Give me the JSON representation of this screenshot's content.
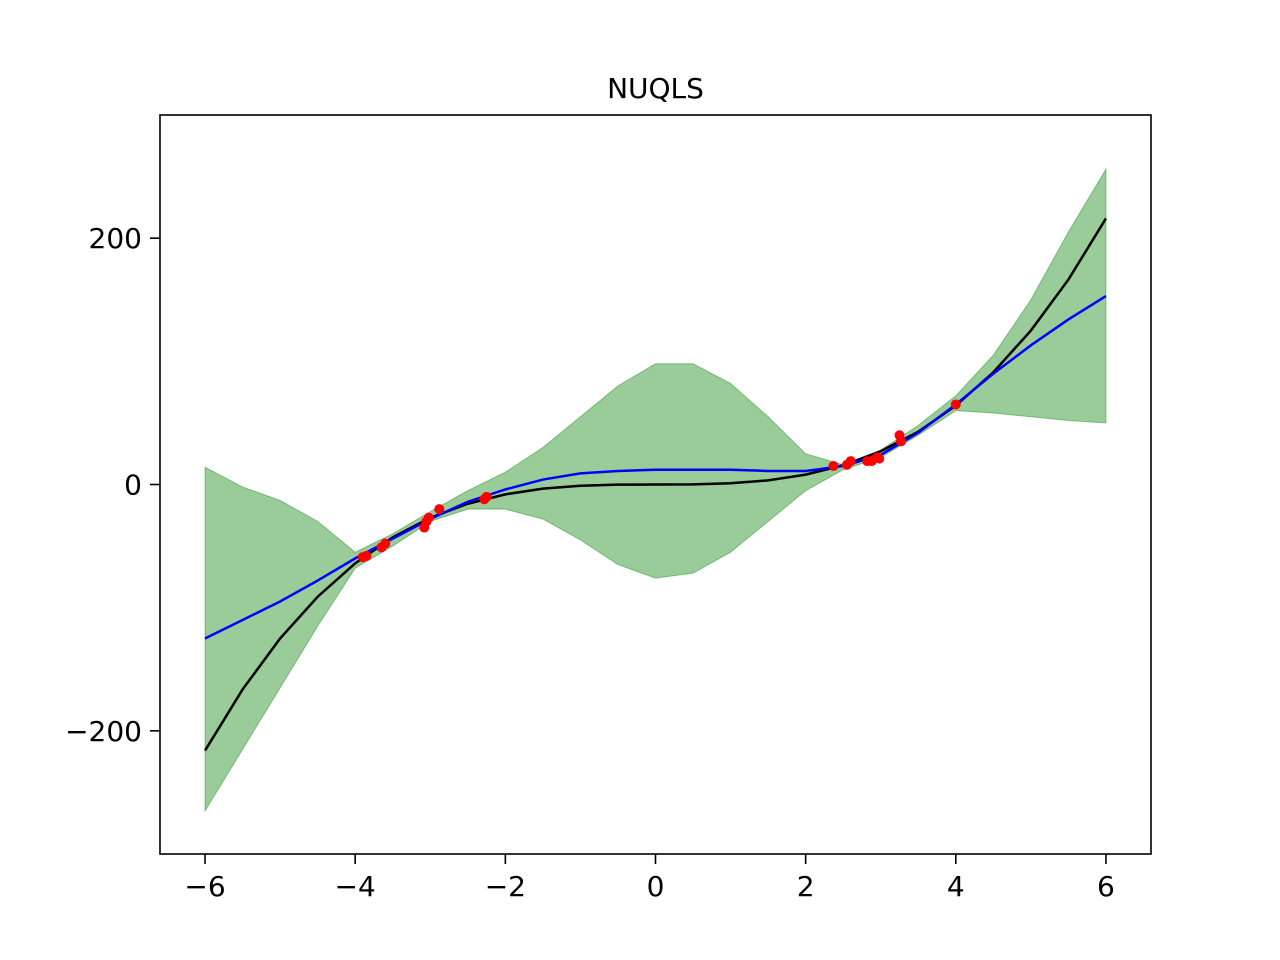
{
  "chart_data": {
    "type": "line",
    "title": "NUQLS",
    "x": [
      -6,
      -5.5,
      -5,
      -4.5,
      -4,
      -3.5,
      -3,
      -2.5,
      -2,
      -1.5,
      -1,
      -0.5,
      0,
      0.5,
      1,
      1.5,
      2,
      2.5,
      3,
      3.5,
      4,
      4.5,
      5,
      5.5,
      6
    ],
    "series": [
      {
        "color": "#000000",
        "values": [
          -216,
          -166.375,
          -125,
          -91.125,
          -64,
          -42.875,
          -27,
          -15.625,
          -8,
          -3.375,
          -1,
          -0.125,
          0,
          0.125,
          1,
          3.375,
          8,
          15.625,
          27,
          42.875,
          64,
          91.125,
          125,
          166.375,
          216
        ]
      },
      {
        "color": "#0000ff",
        "values": [
          -125,
          -110,
          -95,
          -78,
          -60,
          -44,
          -28,
          -14,
          -4,
          4,
          9,
          11,
          12,
          12,
          12,
          11,
          11,
          15,
          24,
          42,
          65,
          90,
          113,
          134,
          153
        ]
      }
    ],
    "band": {
      "color": "#008000",
      "alpha": 0.4,
      "upper": [
        14,
        -2,
        -13,
        -30,
        -55,
        -40,
        -22,
        -5,
        10,
        30,
        55,
        80,
        98,
        98,
        82,
        55,
        25,
        16,
        28,
        48,
        72,
        105,
        150,
        205,
        256
      ],
      "lower": [
        -265,
        -215,
        -165,
        -115,
        -68,
        -50,
        -30,
        -20,
        -20,
        -28,
        -45,
        -65,
        -76,
        -72,
        -55,
        -30,
        -5,
        12,
        22,
        40,
        60,
        58,
        55,
        52,
        50
      ]
    },
    "points": {
      "color": "#ff0000",
      "x": [
        -3.9,
        -3.85,
        -3.65,
        -3.6,
        -3.08,
        -3.05,
        -3.02,
        -2.88,
        -2.28,
        -2.25,
        2.37,
        2.55,
        2.6,
        2.82,
        2.88,
        2.95,
        2.98,
        3.25,
        3.27,
        4.0
      ],
      "y": [
        -59,
        -58,
        -51,
        -48,
        -35,
        -30,
        -27,
        -20,
        -12,
        -10,
        15,
        16,
        19,
        19,
        19,
        22,
        21,
        40,
        35,
        65
      ]
    },
    "xlim": [
      -6.6,
      6.6
    ],
    "ylim": [
      -300,
      300
    ],
    "xticks": [
      {
        "value": -6,
        "label": "−6"
      },
      {
        "value": -4,
        "label": "−4"
      },
      {
        "value": -2,
        "label": "−2"
      },
      0,
      2,
      4,
      6
    ],
    "yticks": [
      {
        "value": -200,
        "label": "−200"
      },
      0,
      200
    ]
  }
}
